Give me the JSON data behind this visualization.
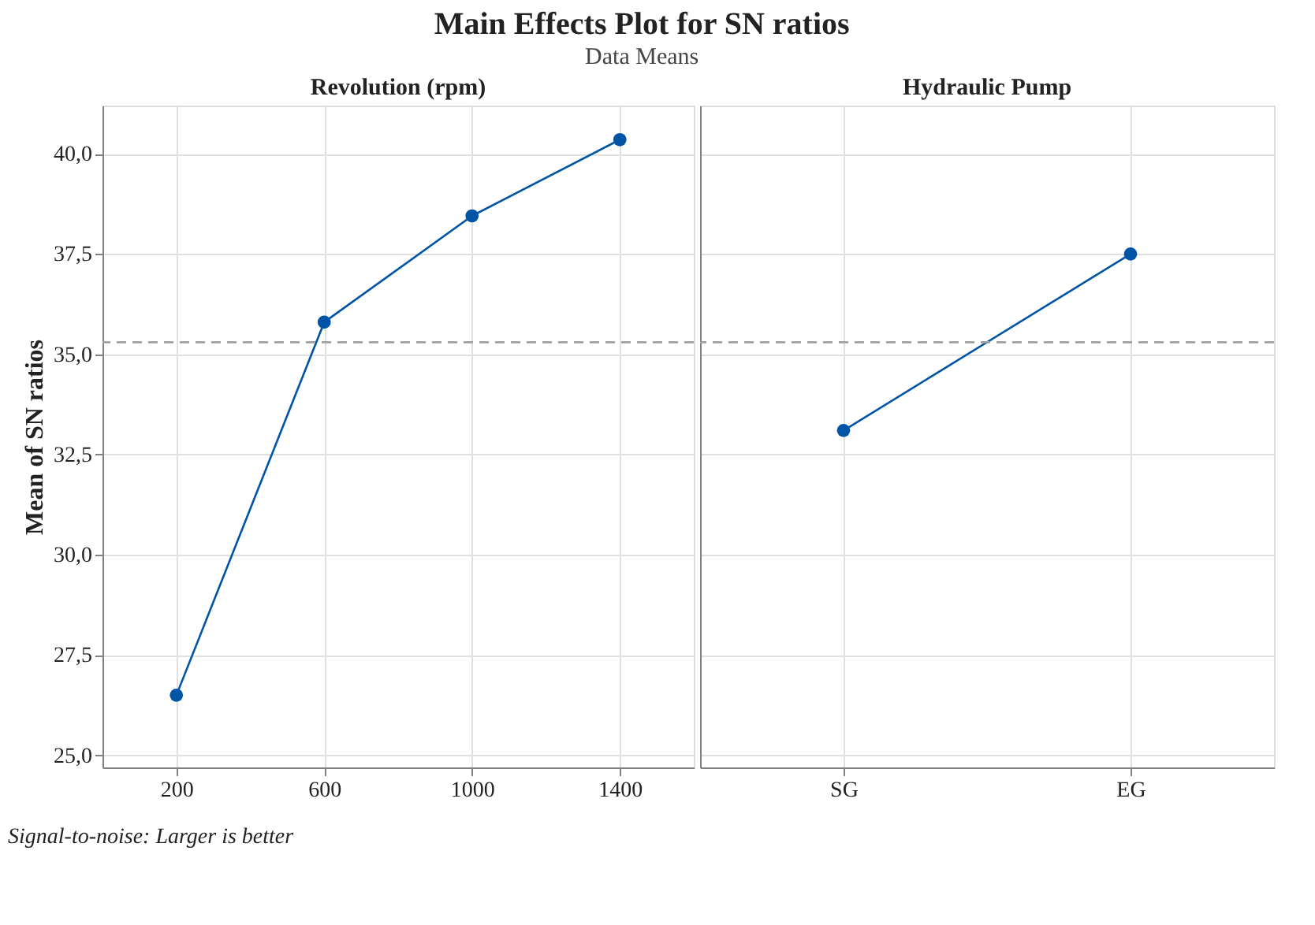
{
  "chart_data": [
    {
      "type": "other",
      "title": "Main Effects Plot for SN ratios",
      "subtitle": "Data Means",
      "annotations": [
        "Signal-to-noise: Larger is better"
      ]
    },
    {
      "type": "line",
      "title": "Revolution (rpm)",
      "ylabel": "Mean of SN ratios",
      "categories": [
        "200",
        "600",
        "1000",
        "1400"
      ],
      "series": [
        {
          "color": "#0054a6",
          "values": [
            26.5,
            35.8,
            38.45,
            40.35
          ]
        }
      ],
      "ylim": [
        24.7,
        41.2
      ],
      "yticks": [
        {
          "value": 25,
          "label": "25,0"
        },
        {
          "value": 27.5,
          "label": "27,5"
        },
        {
          "value": 30,
          "label": "30,0"
        },
        {
          "value": 32.5,
          "label": "32,5"
        },
        {
          "value": 35,
          "label": "35,0"
        },
        {
          "value": 37.5,
          "label": "37,5"
        },
        {
          "value": 40,
          "label": "40,0"
        }
      ],
      "ref_lines": [
        {
          "axis": "y",
          "value": 35.3,
          "color": "#a0a0a0",
          "line_style": "dashed"
        }
      ],
      "grid": true,
      "marker": "circle"
    },
    {
      "type": "line",
      "title": "Hydraulic Pump",
      "categories": [
        "SG",
        "EG"
      ],
      "series": [
        {
          "color": "#0054a6",
          "values": [
            33.1,
            37.5
          ]
        }
      ],
      "ylim": [
        24.7,
        41.2
      ],
      "yticks": [
        {
          "value": 25,
          "label": null
        },
        {
          "value": 27.5,
          "label": null
        },
        {
          "value": 30,
          "label": null
        },
        {
          "value": 32.5,
          "label": null
        },
        {
          "value": 35,
          "label": null
        },
        {
          "value": 37.5,
          "label": null
        },
        {
          "value": 40,
          "label": null
        }
      ],
      "ref_lines": [
        {
          "axis": "y",
          "value": 35.3,
          "color": "#a0a0a0",
          "line_style": "dashed"
        }
      ],
      "grid": true,
      "marker": "circle",
      "tick_labels": "x"
    }
  ]
}
